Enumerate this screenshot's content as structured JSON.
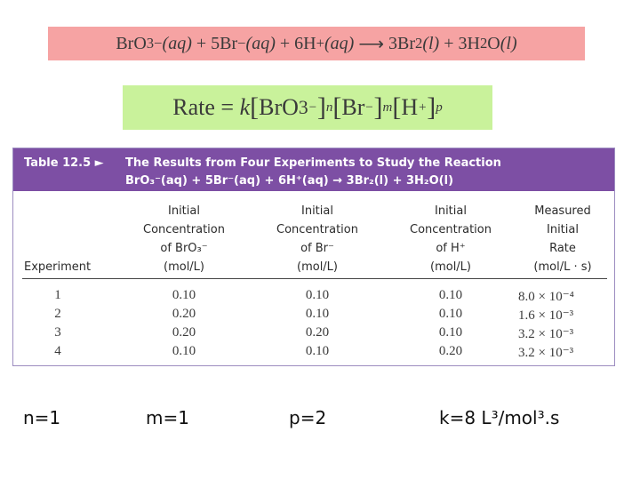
{
  "equation": {
    "lhs_1": "BrO",
    "lhs_1_sub": "3",
    "lhs_1_sup": "−",
    "lhs_1_phase": "(aq)",
    "plus1": "+",
    "lhs_2": "5Br",
    "lhs_2_sup": "−",
    "lhs_2_phase": "(aq)",
    "plus2": "+",
    "lhs_3": "6H",
    "lhs_3_sup": "+",
    "lhs_3_phase": "(aq)",
    "arrow": "⟶",
    "rhs_1": "3Br",
    "rhs_1_sub": "2",
    "rhs_1_phase": "(l)",
    "plus3": "+",
    "rhs_2": "3H",
    "rhs_2_sub": "2",
    "rhs_2_tail": "O",
    "rhs_2_phase": "(l)"
  },
  "rate_law": {
    "rate": "Rate",
    "eq": "=",
    "k": "k",
    "t1": "BrO",
    "t1_sub": "3",
    "t1_sup": "−",
    "t1_exp": "n",
    "t2": "Br",
    "t2_sup": "−",
    "t2_exp": "m",
    "t3": "H",
    "t3_sup": "+",
    "t3_exp": "p"
  },
  "table": {
    "label": "Table 12.5 ►",
    "title_line1": "The Results from Four Experiments to Study the Reaction",
    "title_line2": "BrO₃⁻(aq) + 5Br⁻(aq) + 6H⁺(aq) → 3Br₂(l) + 3H₂O(l)",
    "columns": [
      {
        "lines": [
          "",
          "",
          "",
          "Experiment"
        ]
      },
      {
        "lines": [
          "Initial",
          "Concentration",
          "of BrO₃⁻",
          "(mol/L)"
        ]
      },
      {
        "lines": [
          "Initial",
          "Concentration",
          "of Br⁻",
          "(mol/L)"
        ]
      },
      {
        "lines": [
          "Initial",
          "Concentration",
          "of H⁺",
          "(mol/L)"
        ]
      },
      {
        "lines": [
          "Measured",
          "Initial",
          "Rate",
          "(mol/L · s)"
        ]
      }
    ],
    "rows": [
      [
        "1",
        "0.10",
        "0.10",
        "0.10",
        "8.0 × 10⁻⁴"
      ],
      [
        "2",
        "0.20",
        "0.10",
        "0.10",
        "1.6 × 10⁻³"
      ],
      [
        "3",
        "0.20",
        "0.20",
        "0.10",
        "3.2 × 10⁻³"
      ],
      [
        "4",
        "0.10",
        "0.10",
        "0.20",
        "3.2 × 10⁻³"
      ]
    ]
  },
  "results": {
    "n": "n=1",
    "m": "m=1",
    "p": "p=2",
    "k": "k=8 L³/mol³.s"
  },
  "colors": {
    "equation_bg": "#f6a3a3",
    "rate_bg": "#c9f29b",
    "table_header_bg": "#7d4fa4"
  }
}
